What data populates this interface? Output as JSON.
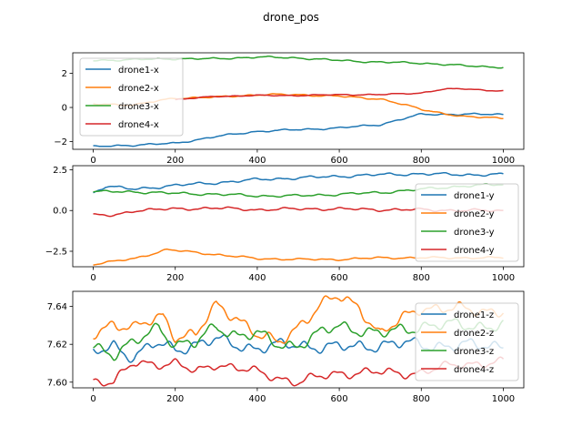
{
  "figure": {
    "title": "drone_pos"
  },
  "chart_data": [
    {
      "type": "line",
      "title": "",
      "xlabel": "",
      "ylabel": "",
      "xlim": [
        -50,
        1050
      ],
      "ylim": [
        -2.45,
        3.2
      ],
      "xticks": [
        0,
        200,
        400,
        600,
        800,
        1000
      ],
      "xtick_labels": [
        "0",
        "200",
        "400",
        "600",
        "800",
        "1000"
      ],
      "yticks": [
        2,
        0,
        -2
      ],
      "ytick_labels": [
        "2",
        "0",
        "−2"
      ],
      "legend": "upper-left",
      "series": [
        {
          "name": "drone1-x",
          "color": "#1f77b4",
          "anchors": [
            [
              0,
              -2.3
            ],
            [
              100,
              -2.2
            ],
            [
              200,
              -2.1
            ],
            [
              300,
              -1.7
            ],
            [
              400,
              -1.4
            ],
            [
              500,
              -1.3
            ],
            [
              600,
              -1.2
            ],
            [
              700,
              -1.0
            ],
            [
              800,
              -0.4
            ],
            [
              900,
              -0.4
            ],
            [
              1000,
              -0.4
            ]
          ],
          "amp": 0.06,
          "seed": 1
        },
        {
          "name": "drone2-x",
          "color": "#ff7f0e",
          "anchors": [
            [
              0,
              0.2
            ],
            [
              100,
              0.15
            ],
            [
              200,
              0.55
            ],
            [
              300,
              0.6
            ],
            [
              400,
              0.75
            ],
            [
              500,
              0.75
            ],
            [
              600,
              0.65
            ],
            [
              700,
              0.5
            ],
            [
              800,
              -0.1
            ],
            [
              900,
              -0.55
            ],
            [
              1000,
              -0.6
            ]
          ],
          "amp": 0.06,
          "seed": 2
        },
        {
          "name": "drone3-x",
          "color": "#2ca02c",
          "anchors": [
            [
              0,
              2.75
            ],
            [
              100,
              2.8
            ],
            [
              200,
              2.85
            ],
            [
              300,
              2.85
            ],
            [
              400,
              2.95
            ],
            [
              500,
              2.9
            ],
            [
              600,
              2.75
            ],
            [
              700,
              2.65
            ],
            [
              800,
              2.6
            ],
            [
              900,
              2.45
            ],
            [
              1000,
              2.35
            ]
          ],
          "amp": 0.06,
          "seed": 3
        },
        {
          "name": "drone4-x",
          "color": "#d62728",
          "anchors": [
            [
              200,
              0.45
            ],
            [
              300,
              0.65
            ],
            [
              400,
              0.7
            ],
            [
              500,
              0.7
            ],
            [
              600,
              0.75
            ],
            [
              700,
              0.75
            ],
            [
              800,
              0.85
            ],
            [
              850,
              1.05
            ],
            [
              900,
              1.1
            ],
            [
              1000,
              0.95
            ]
          ],
          "amp": 0.04,
          "seed": 4
        }
      ]
    },
    {
      "type": "line",
      "title": "",
      "xlabel": "",
      "ylabel": "",
      "xlim": [
        -50,
        1050
      ],
      "ylim": [
        -3.45,
        2.75
      ],
      "xticks": [
        0,
        200,
        400,
        600,
        800,
        1000
      ],
      "xtick_labels": [
        "0",
        "200",
        "400",
        "600",
        "800",
        "1000"
      ],
      "yticks": [
        2.5,
        0.0,
        -2.5
      ],
      "ytick_labels": [
        "2.5",
        "0.0",
        "−2.5"
      ],
      "legend": "right",
      "series": [
        {
          "name": "drone1-y",
          "color": "#1f77b4",
          "anchors": [
            [
              0,
              1.1
            ],
            [
              30,
              1.5
            ],
            [
              100,
              1.3
            ],
            [
              200,
              1.55
            ],
            [
              300,
              1.7
            ],
            [
              400,
              1.9
            ],
            [
              500,
              2.0
            ],
            [
              600,
              2.1
            ],
            [
              700,
              2.2
            ],
            [
              800,
              2.25
            ],
            [
              900,
              2.2
            ],
            [
              1000,
              2.2
            ]
          ],
          "amp": 0.1,
          "seed": 5
        },
        {
          "name": "drone2-y",
          "color": "#ff7f0e",
          "anchors": [
            [
              0,
              -3.3
            ],
            [
              100,
              -2.95
            ],
            [
              180,
              -2.4
            ],
            [
              300,
              -2.7
            ],
            [
              400,
              -2.95
            ],
            [
              500,
              -3.0
            ],
            [
              600,
              -3.0
            ],
            [
              700,
              -2.9
            ],
            [
              800,
              -2.9
            ],
            [
              900,
              -2.9
            ],
            [
              1000,
              -2.9
            ]
          ],
          "amp": 0.07,
          "seed": 6
        },
        {
          "name": "drone3-y",
          "color": "#2ca02c",
          "anchors": [
            [
              0,
              1.15
            ],
            [
              100,
              1.15
            ],
            [
              200,
              1.05
            ],
            [
              300,
              1.0
            ],
            [
              400,
              0.9
            ],
            [
              500,
              0.9
            ],
            [
              600,
              1.0
            ],
            [
              700,
              1.1
            ],
            [
              800,
              1.3
            ],
            [
              900,
              1.5
            ],
            [
              1000,
              1.6
            ]
          ],
          "amp": 0.09,
          "seed": 7
        },
        {
          "name": "drone4-y",
          "color": "#d62728",
          "anchors": [
            [
              0,
              -0.3
            ],
            [
              50,
              -0.3
            ],
            [
              100,
              0.0
            ],
            [
              200,
              0.1
            ],
            [
              300,
              0.15
            ],
            [
              400,
              0.05
            ],
            [
              500,
              0.1
            ],
            [
              600,
              0.1
            ],
            [
              700,
              0.05
            ],
            [
              800,
              0.05
            ],
            [
              900,
              0.0
            ],
            [
              1000,
              0.0
            ]
          ],
          "amp": 0.1,
          "seed": 8
        }
      ]
    },
    {
      "type": "line",
      "title": "",
      "xlabel": "",
      "ylabel": "",
      "xlim": [
        -50,
        1050
      ],
      "ylim": [
        7.597,
        7.648
      ],
      "xticks": [
        0,
        200,
        400,
        600,
        800,
        1000
      ],
      "xtick_labels": [
        "0",
        "200",
        "400",
        "600",
        "800",
        "1000"
      ],
      "yticks": [
        7.64,
        7.62,
        7.6
      ],
      "ytick_labels": [
        "7.64",
        "7.62",
        "7.60"
      ],
      "legend": "right",
      "series": [
        {
          "name": "drone1-z",
          "color": "#1f77b4",
          "anchors": [
            [
              0,
              7.615
            ],
            [
              50,
              7.62
            ],
            [
              100,
              7.613
            ],
            [
              150,
              7.62
            ],
            [
              200,
              7.618
            ],
            [
              250,
              7.62
            ],
            [
              300,
              7.622
            ],
            [
              400,
              7.618
            ],
            [
              500,
              7.62
            ],
            [
              600,
              7.618
            ],
            [
              700,
              7.62
            ],
            [
              800,
              7.62
            ],
            [
              900,
              7.619
            ],
            [
              1000,
              7.62
            ]
          ],
          "amp": 0.004,
          "seed": 9
        },
        {
          "name": "drone2-z",
          "color": "#ff7f0e",
          "anchors": [
            [
              0,
              7.625
            ],
            [
              50,
              7.632
            ],
            [
              100,
              7.628
            ],
            [
              170,
              7.635
            ],
            [
              200,
              7.625
            ],
            [
              250,
              7.625
            ],
            [
              300,
              7.64
            ],
            [
              350,
              7.635
            ],
            [
              400,
              7.625
            ],
            [
              450,
              7.62
            ],
            [
              500,
              7.63
            ],
            [
              550,
              7.64
            ],
            [
              600,
              7.645
            ],
            [
              650,
              7.64
            ],
            [
              700,
              7.625
            ],
            [
              800,
              7.64
            ],
            [
              900,
              7.638
            ],
            [
              1000,
              7.638
            ]
          ],
          "amp": 0.004,
          "seed": 10
        },
        {
          "name": "drone3-z",
          "color": "#2ca02c",
          "anchors": [
            [
              0,
              7.62
            ],
            [
              50,
              7.615
            ],
            [
              100,
              7.62
            ],
            [
              160,
              7.63
            ],
            [
              200,
              7.62
            ],
            [
              250,
              7.62
            ],
            [
              300,
              7.63
            ],
            [
              350,
              7.625
            ],
            [
              400,
              7.625
            ],
            [
              450,
              7.62
            ],
            [
              500,
              7.62
            ],
            [
              550,
              7.625
            ],
            [
              600,
              7.63
            ],
            [
              650,
              7.628
            ],
            [
              700,
              7.625
            ],
            [
              800,
              7.63
            ],
            [
              900,
              7.63
            ],
            [
              1000,
              7.63
            ]
          ],
          "amp": 0.004,
          "seed": 11
        },
        {
          "name": "drone4-z",
          "color": "#d62728",
          "anchors": [
            [
              0,
              7.601
            ],
            [
              50,
              7.6
            ],
            [
              100,
              7.61
            ],
            [
              200,
              7.61
            ],
            [
              250,
              7.605
            ],
            [
              300,
              7.61
            ],
            [
              400,
              7.605
            ],
            [
              500,
              7.6
            ],
            [
              600,
              7.605
            ],
            [
              700,
              7.605
            ],
            [
              800,
              7.605
            ],
            [
              900,
              7.61
            ],
            [
              1000,
              7.61
            ]
          ],
          "amp": 0.003,
          "seed": 12
        }
      ]
    }
  ]
}
